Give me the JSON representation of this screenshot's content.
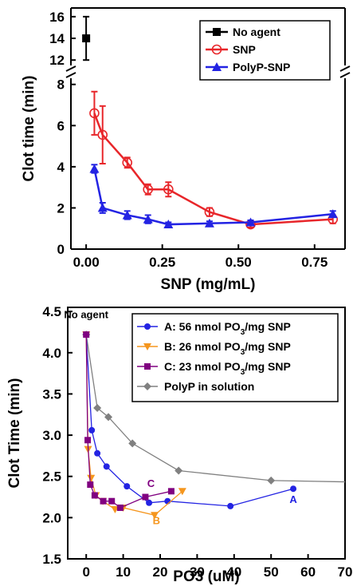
{
  "chart_data": [
    {
      "type": "line",
      "xlabel": "SNP (mg/mL)",
      "ylabel": "Clot time (min)",
      "xlim": [
        -0.05,
        0.85
      ],
      "ylim_lower": [
        0,
        8.3
      ],
      "ylim_upper": [
        11.5,
        16.8
      ],
      "axis_break": "y between 8.3 and 11.5",
      "x_ticks": [
        "0.00",
        "0.25",
        "0.50",
        "0.75"
      ],
      "y_ticks_lower": [
        "0",
        "2",
        "4",
        "6",
        "8"
      ],
      "y_ticks_upper": [
        "12",
        "14",
        "16"
      ],
      "legend_position": "top-right",
      "series": [
        {
          "name": "No agent",
          "color": "#000000",
          "marker": "filled-square",
          "x": [
            0.0
          ],
          "y": [
            14.0
          ],
          "err": [
            2.0
          ]
        },
        {
          "name": "SNP",
          "color": "#e8262a",
          "marker": "open-circle",
          "x": [
            0.027,
            0.054,
            0.135,
            0.203,
            0.27,
            0.405,
            0.54,
            0.81
          ],
          "y": [
            6.6,
            5.55,
            4.2,
            2.9,
            2.9,
            1.8,
            1.2,
            1.45
          ],
          "err": [
            1.05,
            1.4,
            0.25,
            0.25,
            0.35,
            0.2,
            0.15,
            0.2
          ]
        },
        {
          "name": "PolyP-SNP",
          "color": "#2323e3",
          "marker": "filled-triangle",
          "x": [
            0.027,
            0.054,
            0.135,
            0.203,
            0.27,
            0.405,
            0.54,
            0.81
          ],
          "y": [
            3.9,
            2.0,
            1.65,
            1.45,
            1.2,
            1.25,
            1.3,
            1.7
          ],
          "err": [
            0.2,
            0.25,
            0.2,
            0.2,
            0.1,
            0.1,
            0.1,
            0.15
          ]
        }
      ]
    },
    {
      "type": "line",
      "xlabel": "PO3 (uM)",
      "ylabel": "Clot Time (min)",
      "xlim": [
        -5,
        70
      ],
      "ylim": [
        1.5,
        4.55
      ],
      "x_ticks": [
        "0",
        "10",
        "20",
        "30",
        "40",
        "50",
        "60",
        "70"
      ],
      "y_ticks": [
        "1.5",
        "2.0",
        "2.5",
        "3.0",
        "3.5",
        "4.0",
        "4.5"
      ],
      "legend_position": "top-right",
      "annotation": "No agent",
      "series": [
        {
          "name": "A: 56 nmol PO3/mg SNP",
          "label_main": "A: 56 nmol PO",
          "label_sub": "3",
          "label_tail": "/mg SNP",
          "tag": "A",
          "color": "#2323e3",
          "marker": "filled-circle",
          "x": [
            0,
            1.5,
            3,
            5.5,
            11,
            17,
            22,
            39,
            56
          ],
          "y": [
            4.22,
            3.06,
            2.78,
            2.62,
            2.38,
            2.18,
            2.2,
            2.14,
            2.35
          ]
        },
        {
          "name": "B: 26 nmol PO3/mg SNP",
          "label_main": "B: 26 nmol PO",
          "label_sub": "3",
          "label_tail": "/mg SNP",
          "tag": "B",
          "color": "#f5961e",
          "marker": "filled-triangle-down",
          "x": [
            0,
            0.5,
            1.3,
            2.6,
            4.5,
            7.8,
            10,
            18.5,
            26
          ],
          "y": [
            4.22,
            2.83,
            2.48,
            2.27,
            2.2,
            2.1,
            2.12,
            2.03,
            2.32
          ]
        },
        {
          "name": "C: 23 nmol PO3/mg SNP",
          "label_main": "C: 23 nmol PO",
          "label_sub": "3",
          "label_tail": "/mg SNP",
          "tag": "C",
          "color": "#800080",
          "marker": "filled-square",
          "x": [
            0,
            0.4,
            1.1,
            2.3,
            4.6,
            6.9,
            9.2,
            16,
            23
          ],
          "y": [
            4.22,
            2.94,
            2.4,
            2.27,
            2.2,
            2.2,
            2.12,
            2.25,
            2.32
          ]
        },
        {
          "name": "PolyP in solution",
          "tag": "",
          "color": "#808080",
          "marker": "filled-diamond",
          "x": [
            0,
            3,
            6,
            12.5,
            25,
            50,
            75
          ],
          "y": [
            4.22,
            3.33,
            3.22,
            2.9,
            2.57,
            2.45,
            2.43
          ]
        }
      ]
    }
  ]
}
